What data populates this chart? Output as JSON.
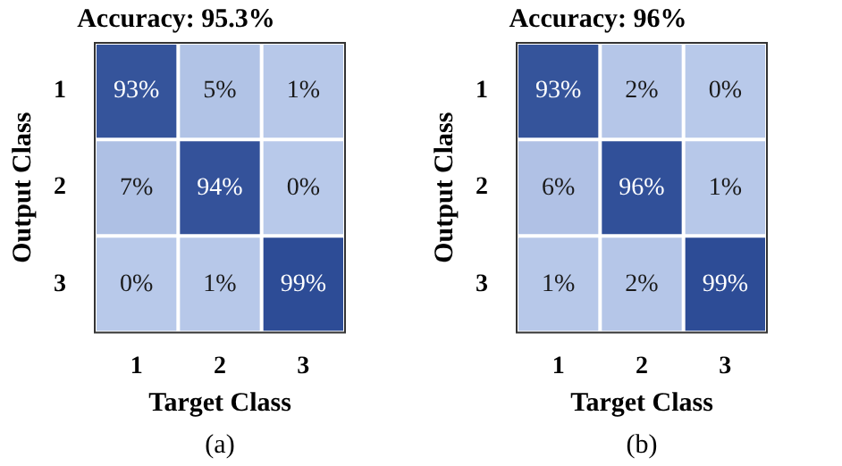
{
  "chart_data": [
    {
      "type": "heatmap",
      "title": "Accuracy: 95.3%",
      "xlabel": "Target Class",
      "ylabel": "Output Class",
      "categories": [
        "1",
        "2",
        "3"
      ],
      "y_categories": [
        "1",
        "2",
        "3"
      ],
      "cells": [
        [
          93,
          5,
          1
        ],
        [
          7,
          94,
          0
        ],
        [
          0,
          1,
          99
        ]
      ],
      "cell_labels": [
        [
          "93%",
          "5%",
          "1%"
        ],
        [
          "7%",
          "94%",
          "0%"
        ],
        [
          "0%",
          "1%",
          "99%"
        ]
      ],
      "annotations": [
        "(a)"
      ]
    },
    {
      "type": "heatmap",
      "title": "Accuracy: 96%",
      "xlabel": "Target Class",
      "ylabel": "Output Class",
      "categories": [
        "1",
        "2",
        "3"
      ],
      "y_categories": [
        "1",
        "2",
        "3"
      ],
      "cells": [
        [
          93,
          2,
          0
        ],
        [
          6,
          96,
          1
        ],
        [
          1,
          2,
          99
        ]
      ],
      "cell_labels": [
        [
          "93%",
          "2%",
          "0%"
        ],
        [
          "6%",
          "96%",
          "1%"
        ],
        [
          "1%",
          "2%",
          "99%"
        ]
      ],
      "annotations": [
        "(b)"
      ]
    }
  ]
}
